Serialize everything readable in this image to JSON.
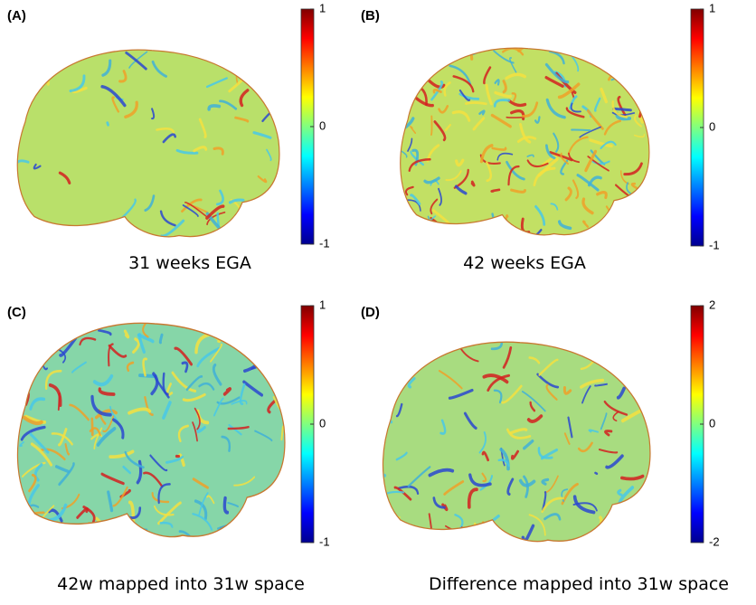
{
  "panels": [
    {
      "label": "(A)",
      "caption": "31 weeks EGA",
      "colorbar": {
        "lim": [
          -1,
          1
        ],
        "ticks": [
          1,
          0,
          -1
        ]
      }
    },
    {
      "label": "(B)",
      "caption": "42 weeks EGA",
      "colorbar": {
        "lim": [
          -1,
          1
        ],
        "ticks": [
          1,
          0,
          -1
        ]
      }
    },
    {
      "label": "(C)",
      "caption": "42w mapped into 31w space",
      "colorbar": {
        "lim": [
          -1,
          1
        ],
        "ticks": [
          1,
          0,
          -1
        ]
      }
    },
    {
      "label": "(D)",
      "caption": "Difference mapped into 31w space",
      "colorbar": {
        "lim": [
          -2,
          2
        ],
        "ticks": [
          2,
          0,
          -2
        ]
      }
    }
  ]
}
